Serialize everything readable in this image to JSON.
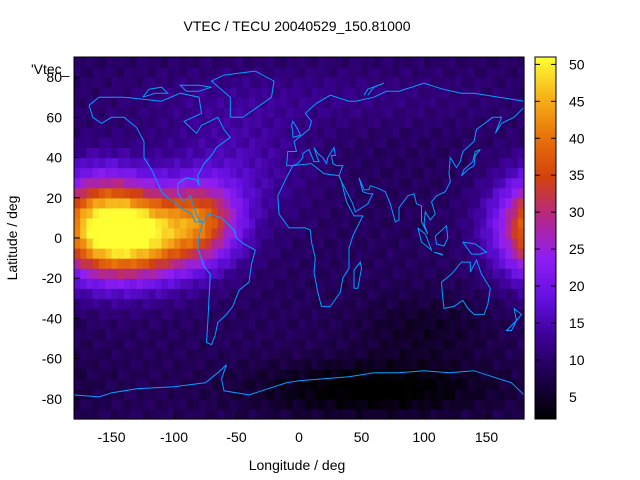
{
  "chart_data": {
    "type": "heatmap",
    "title": "VTEC / TECU 20040529_150.81000",
    "key_label": "'Vtec_",
    "xlabel": "Longitude / deg",
    "ylabel": "Latitude / deg",
    "xlim": [
      -180,
      180
    ],
    "ylim": [
      -90,
      90
    ],
    "x_ticks": [
      -150,
      -100,
      -50,
      0,
      50,
      100,
      150
    ],
    "y_ticks": [
      -80,
      -60,
      -40,
      -20,
      0,
      20,
      40,
      60,
      80
    ],
    "colorbar": {
      "min": 2,
      "max": 51,
      "ticks": [
        5,
        10,
        15,
        20,
        25,
        30,
        35,
        40,
        45,
        50
      ],
      "palette": [
        "#000000",
        "#1c0046",
        "#3a0091",
        "#6410e0",
        "#8f1ef2",
        "#b4278a",
        "#d2420e",
        "#e8720a",
        "#f6b21a",
        "#ffff33"
      ]
    },
    "grid_resolution_deg": 5,
    "field_description_points": [
      {
        "lon": -130,
        "lat": 0,
        "vtec": 45
      },
      {
        "lon": 180,
        "lat": 5,
        "vtec": 33
      },
      {
        "lon": -90,
        "lat": 0,
        "vtec": 33
      },
      {
        "lon": 0,
        "lat": 0,
        "vtec": 10
      },
      {
        "lon": 80,
        "lat": -70,
        "vtec": 3
      },
      {
        "lon": 0,
        "lat": 70,
        "vtec": 10
      }
    ],
    "coastline_color": "#00a0ff"
  }
}
